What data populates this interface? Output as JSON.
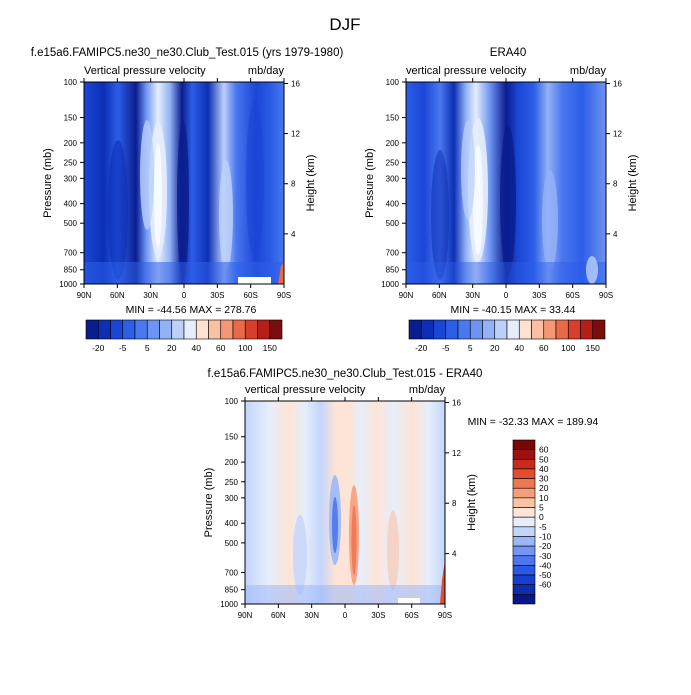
{
  "figure_title": "DJF",
  "colors": {
    "model_obs_scale": [
      "#0a1d8f",
      "#0c2fb5",
      "#1a46d6",
      "#2d5ee8",
      "#4a78ee",
      "#6d94f2",
      "#93b2f6",
      "#bcd0fa",
      "#e6eefd",
      "#fde2d2",
      "#fbbfa3",
      "#f59775",
      "#ea6a47",
      "#d6402a",
      "#b51f18",
      "#7a0e0e"
    ],
    "diff_scale": [
      "#08168a",
      "#0d2cb0",
      "#173fcf",
      "#2b57e2",
      "#4d76ec",
      "#7496f2",
      "#9cb7f7",
      "#c3d5fb",
      "#e6eefd",
      "#fde4d6",
      "#fbc3a6",
      "#f79f7c",
      "#ef7653",
      "#e34c2f",
      "#c92a19",
      "#9c1010",
      "#7a0606"
    ]
  },
  "chart_data": [
    {
      "type": "heatmap",
      "panel": "model",
      "title": "f.e15a6.FAMIPC5.ne30_ne30.Club_Test.015 (yrs 1979-1980)",
      "left_string": "Vertical pressure velocity",
      "right_string": "mb/day",
      "ylabel": "Pressure (mb)",
      "ylabel_right": "Height (km)",
      "x_ticks": [
        "90N",
        "60N",
        "30N",
        "0",
        "30S",
        "60S",
        "90S"
      ],
      "y_ticks": [
        "100",
        "150",
        "200",
        "250",
        "300",
        "400",
        "500",
        "700",
        "850",
        "1000"
      ],
      "y_ticks_right": [
        "16",
        "12",
        "8",
        "4"
      ],
      "xlim": [
        "90N",
        "90S"
      ],
      "ylim": [
        1000,
        100
      ],
      "min_max_label": "MIN = -44.56   MAX = 278.76",
      "colorbar_labels": [
        "-20",
        "-5",
        "5",
        "20",
        "40",
        "60",
        "100",
        "150"
      ]
    },
    {
      "type": "heatmap",
      "panel": "obs",
      "title": "ERA40",
      "left_string": "vertical pressure velocity",
      "right_string": "mb/day",
      "ylabel": "Pressure (mb)",
      "ylabel_right": "Height (km)",
      "x_ticks": [
        "90N",
        "60N",
        "30N",
        "0",
        "30S",
        "60S",
        "90S"
      ],
      "y_ticks": [
        "100",
        "150",
        "200",
        "250",
        "300",
        "400",
        "500",
        "700",
        "850",
        "1000"
      ],
      "y_ticks_right": [
        "16",
        "12",
        "8",
        "4"
      ],
      "xlim": [
        "90N",
        "90S"
      ],
      "ylim": [
        1000,
        100
      ],
      "min_max_label": "MIN = -40.15   MAX =  33.44",
      "colorbar_labels": [
        "-20",
        "-5",
        "5",
        "20",
        "40",
        "60",
        "100",
        "150"
      ]
    },
    {
      "type": "heatmap",
      "panel": "difference",
      "title": "f.e15a6.FAMIPC5.ne30_ne30.Club_Test.015 - ERA40",
      "left_string": "vertical pressure velocity",
      "right_string": "mb/day",
      "ylabel": "Pressure (mb)",
      "ylabel_right": "Height (km)",
      "x_ticks": [
        "90N",
        "60N",
        "30N",
        "0",
        "30S",
        "60S",
        "90S"
      ],
      "y_ticks": [
        "100",
        "150",
        "200",
        "250",
        "300",
        "400",
        "500",
        "700",
        "850",
        "1000"
      ],
      "y_ticks_right": [
        "16",
        "12",
        "8",
        "4"
      ],
      "xlim": [
        "90N",
        "90S"
      ],
      "ylim": [
        1000,
        100
      ],
      "min_max_label": "MIN = -32.33   MAX = 189.94",
      "colorbar_labels": [
        "60",
        "50",
        "40",
        "30",
        "20",
        "10",
        "5",
        "0",
        "-5",
        "-10",
        "-20",
        "-30",
        "-40",
        "-50",
        "-60"
      ]
    }
  ]
}
